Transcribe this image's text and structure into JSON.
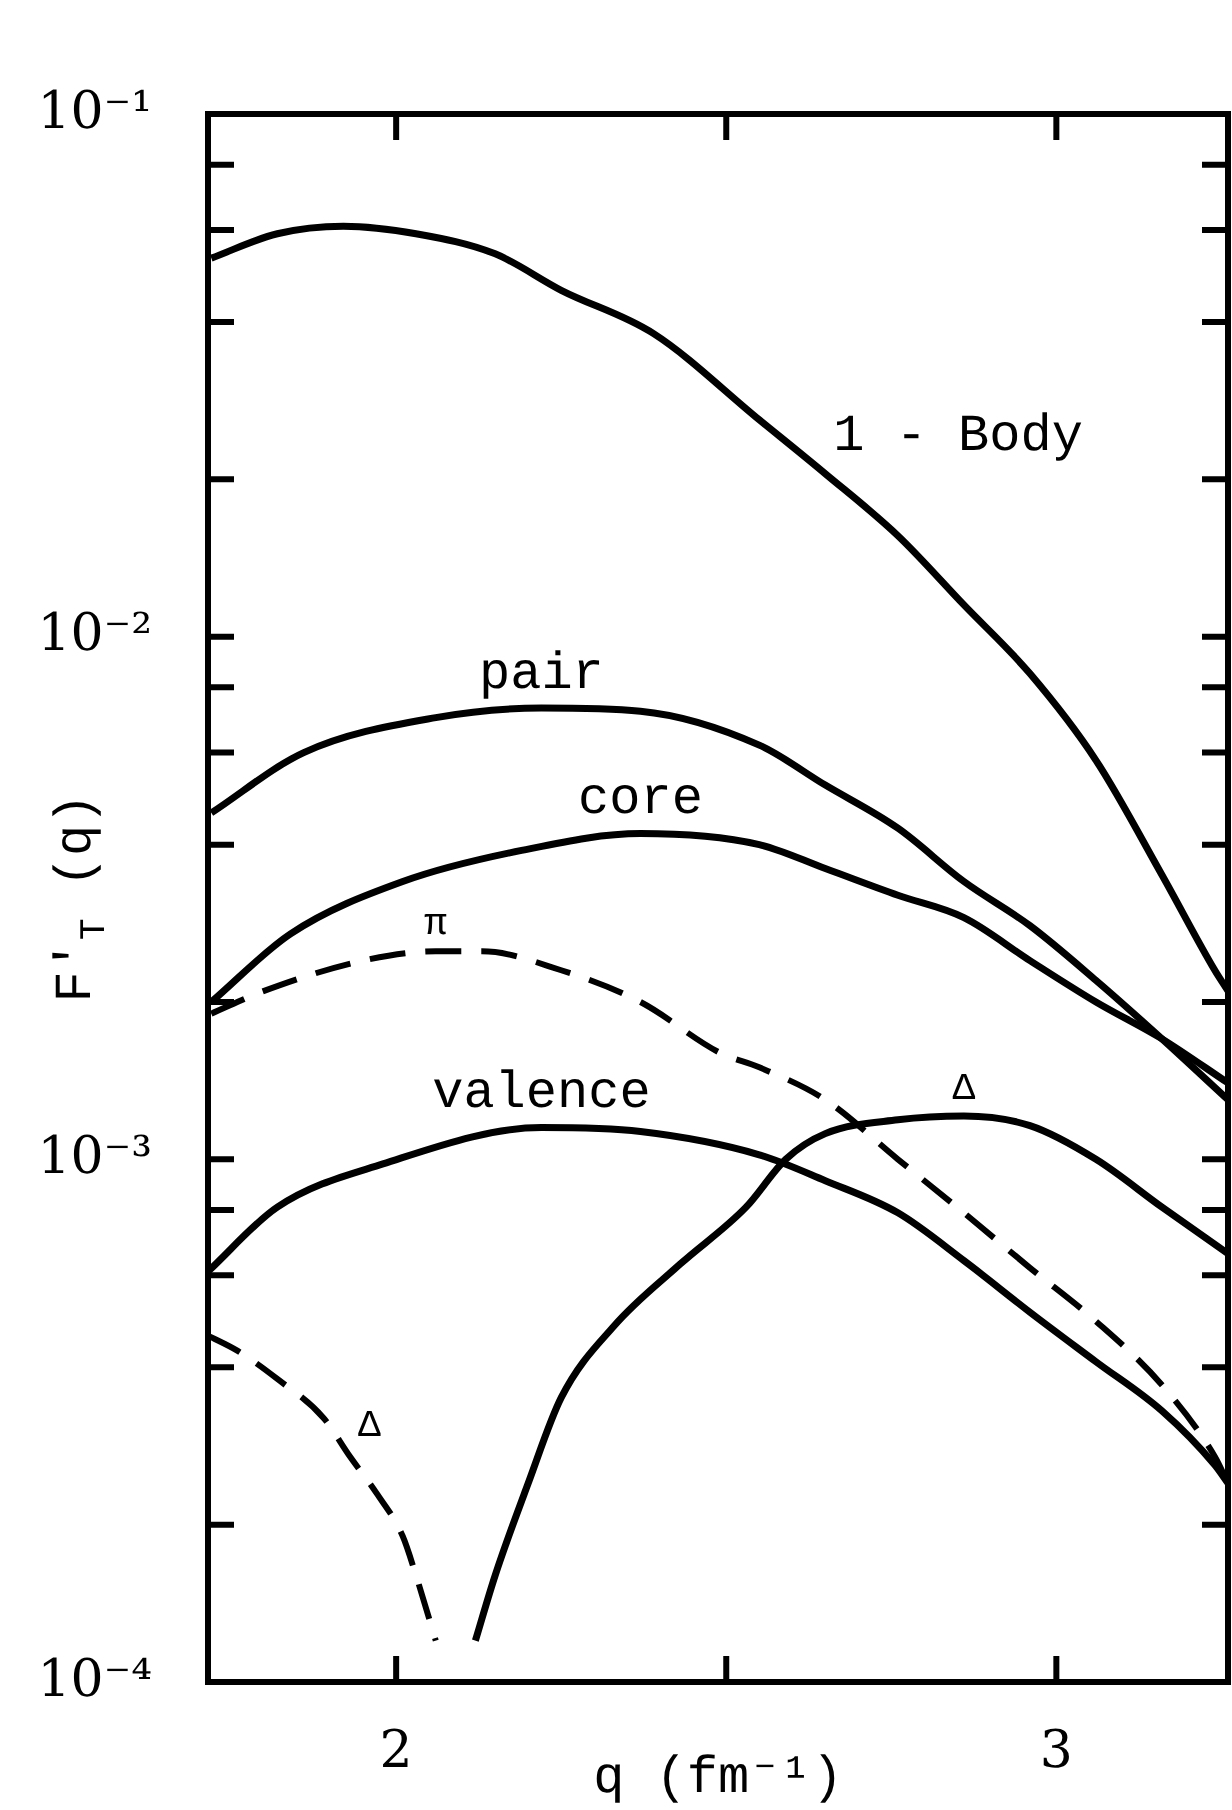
{
  "chart_data": {
    "type": "line",
    "xlabel": "q (fm⁻¹)",
    "ylabel": "F'$_{T}$ (q)",
    "log": "y",
    "xlim": [
      1.715,
      3.26
    ],
    "xticks": [
      2,
      {
        "value": 2.5,
        "label": null
      },
      3
    ],
    "ylim": [
      0.0001,
      0.1
    ],
    "yticks": [
      {
        "value": 0.0001,
        "label": "10⁻⁴"
      },
      {
        "value": 0.0002,
        "label": null
      },
      {
        "value": 0.0004,
        "label": null
      },
      {
        "value": 0.0006,
        "label": null
      },
      {
        "value": 0.0008,
        "label": null
      },
      {
        "value": 0.001,
        "label": "10⁻³"
      },
      {
        "value": 0.002,
        "label": null
      },
      {
        "value": 0.004,
        "label": null
      },
      {
        "value": 0.006,
        "label": null
      },
      {
        "value": 0.008,
        "label": null
      },
      {
        "value": 0.01,
        "label": "10⁻²"
      },
      {
        "value": 0.02,
        "label": null
      },
      {
        "value": 0.04,
        "label": null
      },
      {
        "value": 0.06,
        "label": null
      },
      {
        "value": 0.08,
        "label": null
      },
      {
        "value": 0.1,
        "label": "10⁻¹"
      }
    ],
    "series": [
      {
        "name": "1 - Body",
        "color": "#000000",
        "line_style": "solid",
        "x": [
          1.72,
          1.82,
          1.92,
          2.03,
          2.15,
          2.25,
          2.39,
          2.55,
          2.65,
          2.76,
          2.86,
          2.96,
          3.06,
          3.16,
          3.24,
          3.26
        ],
        "values": [
          0.053,
          0.059,
          0.061,
          0.059,
          0.054,
          0.046,
          0.038,
          0.026,
          0.0205,
          0.0156,
          0.0115,
          0.0085,
          0.0058,
          0.0035,
          0.0023,
          0.0021
        ]
      },
      {
        "name": "pair",
        "color": "#000000",
        "line_style": "solid",
        "x": [
          1.72,
          1.86,
          2.06,
          2.22,
          2.37,
          2.55,
          2.65,
          2.76,
          2.86,
          2.96,
          3.06,
          3.16,
          3.26
        ],
        "values": [
          0.0046,
          0.006,
          0.007,
          0.0073,
          0.0072,
          0.0062,
          0.0052,
          0.0043,
          0.0034,
          0.0028,
          0.0022,
          0.0017,
          0.0013
        ]
      },
      {
        "name": "core",
        "color": "#000000",
        "line_style": "solid",
        "x": [
          1.72,
          1.84,
          2.01,
          2.19,
          2.37,
          2.55,
          2.65,
          2.76,
          2.86,
          2.96,
          3.06,
          3.16,
          3.26
        ],
        "values": [
          0.002,
          0.0027,
          0.0034,
          0.0039,
          0.0042,
          0.004,
          0.0036,
          0.0032,
          0.0029,
          0.0024,
          0.002,
          0.0017,
          0.0014
        ]
      },
      {
        "name": "π",
        "color": "#000000",
        "line_style": "dashed",
        "x": [
          1.72,
          1.8,
          1.95,
          2.06,
          2.13,
          2.25,
          2.37,
          2.49,
          2.55,
          2.65,
          2.76,
          2.86,
          2.96,
          3.06,
          3.16,
          3.24,
          3.26
        ],
        "values": [
          0.0019,
          0.0021,
          0.0024,
          0.0025,
          0.0025,
          0.0023,
          0.002,
          0.0016,
          0.0015,
          0.0013,
          0.001,
          0.00079,
          0.00062,
          0.00049,
          0.00037,
          0.00027,
          0.00024
        ]
      },
      {
        "name": "valence",
        "color": "#000000",
        "line_style": "solid",
        "x": [
          1.715,
          1.82,
          1.98,
          2.22,
          2.37,
          2.55,
          2.65,
          2.76,
          2.86,
          2.96,
          3.06,
          3.16,
          3.24,
          3.26
        ],
        "values": [
          0.00061,
          0.00081,
          0.00098,
          0.00115,
          0.00113,
          0.00102,
          0.00091,
          0.00079,
          0.00064,
          0.00051,
          0.00041,
          0.00033,
          0.00026,
          0.00024
        ]
      },
      {
        "name": "Δ",
        "color": "#000000",
        "line_style": "solid",
        "x": [
          2.12,
          2.15,
          2.2,
          2.25,
          2.33,
          2.43,
          2.53,
          2.59,
          2.65,
          2.76,
          2.86,
          2.96,
          3.06,
          3.16,
          3.26
        ],
        "values": [
          0.00012,
          0.00016,
          0.00024,
          0.00035,
          0.00048,
          0.00063,
          0.00081,
          0.001,
          0.00112,
          0.00119,
          0.00121,
          0.00116,
          0.001,
          0.00081,
          0.00066
        ]
      },
      {
        "name": "Δ",
        "color": "#000000",
        "line_style": "dashed",
        "x": [
          1.715,
          1.76,
          1.82,
          1.89,
          1.93,
          1.97,
          2.01,
          2.03,
          2.06
        ],
        "values": [
          0.00046,
          0.00043,
          0.00038,
          0.00032,
          0.00027,
          0.00023,
          0.00019,
          0.00016,
          0.00012
        ]
      }
    ]
  }
}
